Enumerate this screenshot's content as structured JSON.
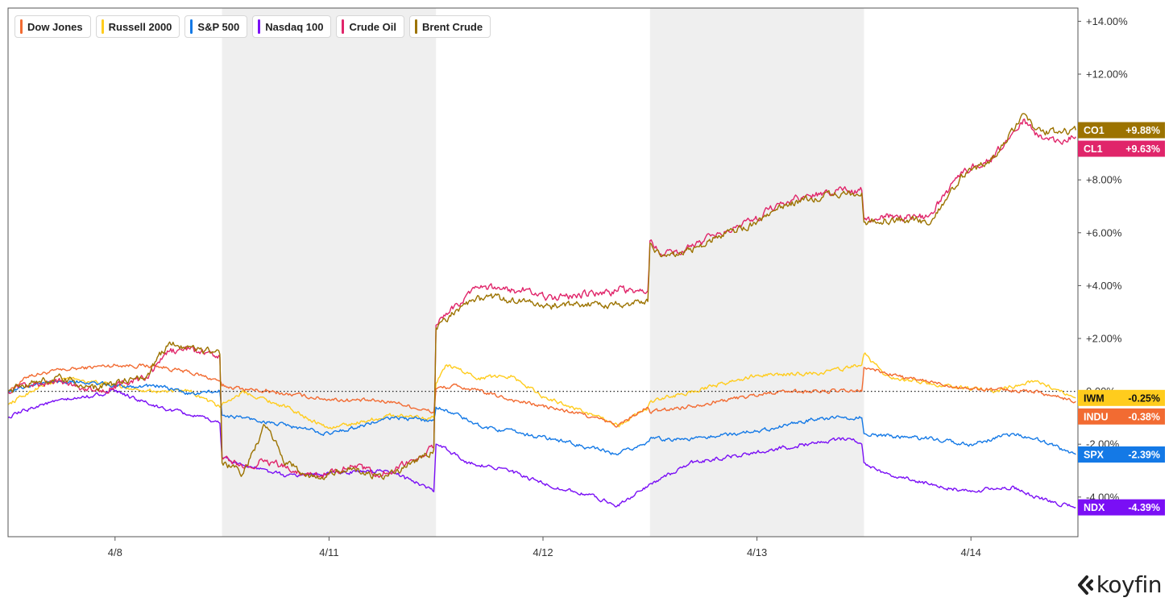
{
  "chart_data": {
    "type": "line",
    "y_unit": "%",
    "ylim": [
      -5.5,
      14.5
    ],
    "y_ticks": [
      "+14.00%",
      "+12.00%",
      "+10.00%",
      "+8.00%",
      "+6.00%",
      "+4.00%",
      "+2.00%",
      "0.00%",
      "-2.00%",
      "-4.00%"
    ],
    "x_tick_labels": [
      "4/8",
      "4/11",
      "4/12",
      "4/13",
      "4/14"
    ],
    "x_range": [
      0.0,
      5.0
    ],
    "shaded_periods": [
      [
        1.0,
        2.0
      ],
      [
        3.0,
        4.0
      ]
    ],
    "zero_line": "dotted",
    "legend_position": "top-left",
    "series": [
      {
        "name": "Dow Jones",
        "ticker": "INDU",
        "last_label": "-0.38%",
        "last_value": -0.38,
        "color": "#f26b32",
        "x": [
          0.0,
          0.1,
          0.25,
          0.5,
          0.7,
          0.85,
          0.99,
          1.0,
          1.2,
          1.5,
          1.8,
          1.99,
          2.0,
          2.1,
          2.4,
          2.7,
          2.85,
          2.99,
          3.0,
          3.3,
          3.6,
          3.99,
          4.0,
          4.2,
          4.5,
          4.8,
          4.99
        ],
        "y": [
          0.0,
          0.6,
          0.8,
          1.0,
          0.95,
          0.7,
          0.4,
          0.2,
          0.0,
          -0.3,
          -0.4,
          -0.8,
          0.1,
          0.2,
          -0.4,
          -0.9,
          -1.3,
          -0.6,
          -0.8,
          -0.4,
          0.0,
          0.0,
          0.9,
          0.5,
          0.1,
          0.0,
          -0.38
        ]
      },
      {
        "name": "Russell 2000",
        "ticker": "IWM",
        "last_label": "-0.25%",
        "last_value": -0.25,
        "color": "#ffcc1d",
        "x": [
          0.0,
          0.15,
          0.3,
          0.5,
          0.7,
          0.85,
          0.99,
          1.0,
          1.1,
          1.3,
          1.5,
          1.8,
          1.99,
          2.0,
          2.05,
          2.2,
          2.35,
          2.5,
          2.7,
          2.85,
          2.99,
          3.0,
          3.2,
          3.5,
          3.8,
          3.99,
          4.0,
          4.1,
          4.3,
          4.6,
          4.8,
          4.99
        ],
        "y": [
          -0.5,
          0.2,
          0.5,
          0.2,
          0.0,
          0.0,
          -0.6,
          -0.5,
          0.0,
          -0.6,
          -1.4,
          -0.9,
          -1.0,
          0.3,
          1.0,
          0.5,
          0.6,
          -0.2,
          -0.8,
          -1.3,
          -0.6,
          -0.4,
          0.0,
          0.6,
          0.7,
          1.0,
          1.4,
          0.6,
          0.3,
          0.0,
          0.4,
          -0.25
        ]
      },
      {
        "name": "S&P 500",
        "ticker": "SPX",
        "last_label": "-2.39%",
        "last_value": -2.39,
        "color": "#1479e6",
        "x": [
          0.0,
          0.15,
          0.3,
          0.5,
          0.7,
          0.85,
          0.99,
          1.0,
          1.1,
          1.3,
          1.5,
          1.8,
          1.99,
          2.0,
          2.05,
          2.2,
          2.4,
          2.6,
          2.85,
          2.99,
          3.0,
          3.2,
          3.5,
          3.8,
          3.99,
          4.0,
          4.1,
          4.3,
          4.5,
          4.7,
          4.8,
          4.99
        ],
        "y": [
          0.0,
          0.3,
          0.4,
          0.2,
          0.2,
          -0.1,
          0.0,
          -0.9,
          -1.0,
          -1.3,
          -1.6,
          -1.0,
          -1.1,
          -0.6,
          -0.7,
          -1.3,
          -1.6,
          -1.9,
          -2.4,
          -1.9,
          -1.8,
          -1.8,
          -1.5,
          -1.0,
          -1.0,
          -1.6,
          -1.7,
          -1.8,
          -2.0,
          -1.6,
          -1.8,
          -2.39
        ]
      },
      {
        "name": "Nasdaq 100",
        "ticker": "NDX",
        "last_label": "-4.39%",
        "last_value": -4.39,
        "color": "#7a0ff5",
        "x": [
          0.0,
          0.15,
          0.3,
          0.5,
          0.7,
          0.85,
          0.99,
          1.0,
          1.1,
          1.3,
          1.5,
          1.7,
          1.85,
          1.99,
          2.0,
          2.05,
          2.15,
          2.3,
          2.5,
          2.7,
          2.85,
          2.99,
          3.0,
          3.2,
          3.5,
          3.8,
          3.95,
          3.99,
          4.0,
          4.1,
          4.3,
          4.5,
          4.7,
          4.8,
          4.99
        ],
        "y": [
          -1.0,
          -0.5,
          -0.3,
          0.0,
          -0.6,
          -0.9,
          -1.2,
          -2.5,
          -2.8,
          -3.2,
          -3.1,
          -3.0,
          -3.2,
          -3.8,
          -2.0,
          -2.2,
          -2.7,
          -2.9,
          -3.5,
          -3.9,
          -4.3,
          -3.6,
          -3.5,
          -2.7,
          -2.3,
          -1.9,
          -1.8,
          -2.0,
          -2.7,
          -3.1,
          -3.5,
          -3.8,
          -3.6,
          -4.0,
          -4.39
        ]
      },
      {
        "name": "Crude Oil",
        "ticker": "CL1",
        "last_label": "+9.63%",
        "last_value": 9.63,
        "color": "#e0256a",
        "x": [
          0.0,
          0.1,
          0.25,
          0.4,
          0.55,
          0.65,
          0.75,
          0.85,
          0.99,
          1.0,
          1.1,
          1.2,
          1.3,
          1.45,
          1.6,
          1.75,
          1.9,
          1.99,
          2.0,
          2.1,
          2.2,
          2.4,
          2.55,
          2.7,
          2.85,
          2.99,
          3.0,
          3.05,
          3.15,
          3.3,
          3.5,
          3.6,
          3.75,
          3.9,
          3.99,
          4.0,
          4.1,
          4.25,
          4.3,
          4.45,
          4.6,
          4.75,
          4.8,
          4.9,
          4.99
        ],
        "y": [
          0.0,
          0.2,
          0.4,
          0.0,
          0.3,
          0.5,
          1.5,
          1.6,
          1.3,
          -2.5,
          -2.9,
          -2.6,
          -2.9,
          -3.2,
          -2.8,
          -3.2,
          -2.6,
          -2.1,
          2.5,
          3.3,
          3.9,
          3.8,
          3.5,
          3.7,
          3.8,
          3.8,
          5.7,
          5.2,
          5.3,
          5.9,
          6.5,
          7.1,
          7.4,
          7.6,
          7.6,
          6.5,
          6.6,
          6.6,
          6.6,
          8.2,
          8.9,
          10.3,
          9.7,
          9.5,
          9.63
        ]
      },
      {
        "name": "Brent Crude",
        "ticker": "CO1",
        "last_label": "+9.88%",
        "last_value": 9.88,
        "color": "#9c7300",
        "x": [
          0.0,
          0.1,
          0.25,
          0.4,
          0.55,
          0.65,
          0.75,
          0.85,
          0.99,
          1.0,
          1.1,
          1.2,
          1.3,
          1.45,
          1.6,
          1.75,
          1.9,
          1.99,
          2.0,
          2.1,
          2.2,
          2.4,
          2.55,
          2.7,
          2.85,
          2.99,
          3.0,
          3.05,
          3.15,
          3.3,
          3.5,
          3.6,
          3.75,
          3.9,
          3.99,
          4.0,
          4.1,
          4.25,
          4.3,
          4.45,
          4.6,
          4.75,
          4.8,
          4.9,
          4.99
        ],
        "y": [
          0.0,
          0.3,
          0.5,
          0.1,
          0.4,
          0.6,
          1.8,
          1.7,
          1.4,
          -2.7,
          -3.1,
          -1.3,
          -2.7,
          -3.3,
          -2.9,
          -3.3,
          -2.7,
          -2.2,
          2.4,
          3.1,
          3.6,
          3.4,
          3.2,
          3.3,
          3.3,
          3.4,
          5.6,
          5.1,
          5.2,
          5.8,
          6.4,
          7.0,
          7.3,
          7.5,
          7.5,
          6.4,
          6.5,
          6.5,
          6.3,
          8.1,
          8.8,
          10.5,
          9.9,
          9.8,
          9.88
        ]
      }
    ]
  },
  "brand": {
    "name": "koyfin"
  }
}
